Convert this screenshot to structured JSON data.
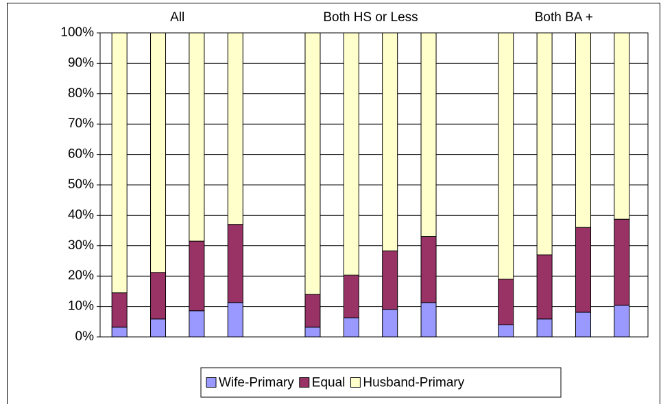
{
  "chart_data": {
    "type": "stacked_bar",
    "group_labels": [
      "All",
      "Both HS or Less",
      "Both BA +"
    ],
    "categories": [
      null,
      null,
      null,
      null,
      null,
      null,
      null,
      null,
      null,
      null,
      null,
      null
    ],
    "series": [
      {
        "name": "Wife-Primary",
        "color": "#9999ff",
        "values": [
          3.2,
          5.9,
          8.6,
          11.3,
          3.2,
          6.3,
          9,
          11.3,
          4,
          5.9,
          8.1,
          10.4
        ]
      },
      {
        "name": "Equal",
        "color": "#993366",
        "values": [
          11.3,
          15.3,
          22.9,
          25.7,
          10.8,
          14,
          19.3,
          21.7,
          15,
          21.1,
          27.9,
          28.3
        ]
      },
      {
        "name": "Husband-Primary",
        "color": "#ffffcc",
        "values": [
          85.5,
          78.8,
          68.5,
          63,
          86,
          79.7,
          71.7,
          67,
          81,
          73,
          64,
          61.3
        ]
      }
    ],
    "ylim": [
      0,
      100
    ],
    "yticks": [
      {
        "value": 0,
        "label": "0%"
      },
      {
        "value": 10,
        "label": "10%"
      },
      {
        "value": 20,
        "label": "20%"
      },
      {
        "value": 30,
        "label": "30%"
      },
      {
        "value": 40,
        "label": "40%"
      },
      {
        "value": 50,
        "label": "50%"
      },
      {
        "value": 60,
        "label": "60%"
      },
      {
        "value": 70,
        "label": "70%"
      },
      {
        "value": 80,
        "label": "80%"
      },
      {
        "value": 90,
        "label": "90%"
      },
      {
        "value": 100,
        "label": "100%"
      }
    ],
    "grid": true,
    "legend": "bottom"
  }
}
